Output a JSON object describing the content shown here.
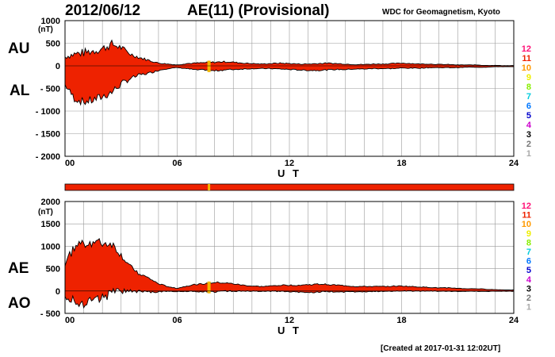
{
  "header": {
    "date": "2012/06/12",
    "index_title": "AE(11) (Provisional)",
    "source": "WDC for Geomagnetism, Kyoto"
  },
  "footer": {
    "created": "[Created at 2017-01-31 12:02UT]"
  },
  "palette": {
    "fill": "#ee2200",
    "outline": "#000000",
    "marker": "#f5b800",
    "grid": "#999999"
  },
  "station_legend": [
    {
      "label": "12",
      "color": "#ff1177"
    },
    {
      "label": "11",
      "color": "#ee2200"
    },
    {
      "label": "10",
      "color": "#ff9900"
    },
    {
      "label": "9",
      "color": "#eeee00"
    },
    {
      "label": "8",
      "color": "#88ee00"
    },
    {
      "label": "7",
      "color": "#00ccdd"
    },
    {
      "label": "6",
      "color": "#0077ff"
    },
    {
      "label": "5",
      "color": "#0000cc"
    },
    {
      "label": "4",
      "color": "#cc00cc"
    },
    {
      "label": "3",
      "color": "#000000"
    },
    {
      "label": "2",
      "color": "#777777"
    },
    {
      "label": "1",
      "color": "#aaaaaa"
    }
  ],
  "chart_data": [
    {
      "type": "area",
      "id": "au-al",
      "series_labels": [
        "AU",
        "AL"
      ],
      "unit": "(nT)",
      "xlabel": "U T",
      "xlim": [
        0,
        24
      ],
      "xticks": [
        "00",
        "06",
        "12",
        "18",
        "24"
      ],
      "ylim": [
        -2000,
        1000
      ],
      "yticks": [
        1000,
        500,
        0,
        -500,
        -1000,
        -1500,
        -2000
      ],
      "ytick_labels": [
        "1000",
        "500",
        "0",
        "- 500",
        "- 1000",
        "- 1500",
        "- 2000"
      ],
      "gap_marker_hour": 7.7,
      "x": [
        0,
        0.5,
        1,
        1.5,
        2,
        2.5,
        3,
        3.5,
        4,
        4.5,
        5,
        5.5,
        6,
        6.5,
        7,
        7.5,
        8,
        8.5,
        9,
        9.5,
        10,
        10.5,
        11,
        11.5,
        12,
        12.5,
        13,
        13.5,
        14,
        14.5,
        15,
        15.5,
        16,
        16.5,
        17,
        17.5,
        18,
        18.5,
        19,
        19.5,
        20,
        20.5,
        21,
        21.5,
        22,
        22.5,
        23,
        23.5,
        24
      ],
      "series": [
        {
          "name": "AU",
          "values": [
            200,
            260,
            290,
            330,
            380,
            480,
            400,
            260,
            180,
            120,
            60,
            40,
            20,
            50,
            60,
            70,
            80,
            90,
            80,
            60,
            50,
            40,
            50,
            60,
            50,
            40,
            40,
            50,
            60,
            50,
            40,
            30,
            30,
            40,
            40,
            50,
            60,
            50,
            40,
            40,
            30,
            30,
            20,
            20,
            20,
            10,
            10,
            5,
            5
          ]
        },
        {
          "name": "AL",
          "values": [
            -420,
            -720,
            -800,
            -760,
            -680,
            -580,
            -400,
            -280,
            -200,
            -160,
            -100,
            -60,
            -40,
            -60,
            -90,
            -90,
            -110,
            -90,
            -80,
            -70,
            -60,
            -60,
            -60,
            -70,
            -80,
            -90,
            -100,
            -100,
            -90,
            -80,
            -80,
            -70,
            -70,
            -60,
            -60,
            -60,
            -50,
            -50,
            -50,
            -40,
            -40,
            -40,
            -40,
            -30,
            -30,
            -30,
            -20,
            -20,
            -20
          ]
        }
      ]
    },
    {
      "type": "area",
      "id": "ae-ao",
      "series_labels": [
        "AE",
        "AO"
      ],
      "unit": "(nT)",
      "xlabel": "U T",
      "xlim": [
        0,
        24
      ],
      "xticks": [
        "00",
        "06",
        "12",
        "18",
        "24"
      ],
      "ylim": [
        -500,
        2000
      ],
      "yticks": [
        2000,
        1500,
        1000,
        500,
        0,
        -500
      ],
      "ytick_labels": [
        "2000",
        "1500",
        "1000",
        "500",
        "0",
        "- 500"
      ],
      "gap_marker_hour": 7.7,
      "x": [
        0,
        0.5,
        1,
        1.5,
        2,
        2.5,
        3,
        3.5,
        4,
        4.5,
        5,
        5.5,
        6,
        6.5,
        7,
        7.5,
        8,
        8.5,
        9,
        9.5,
        10,
        10.5,
        11,
        11.5,
        12,
        12.5,
        13,
        13.5,
        14,
        14.5,
        15,
        15.5,
        16,
        16.5,
        17,
        17.5,
        18,
        18.5,
        19,
        19.5,
        20,
        20.5,
        21,
        21.5,
        22,
        22.5,
        23,
        23.5,
        24
      ],
      "series": [
        {
          "name": "AE",
          "values": [
            620,
            980,
            1090,
            1090,
            1060,
            1060,
            800,
            540,
            380,
            280,
            160,
            100,
            60,
            110,
            150,
            160,
            190,
            180,
            160,
            130,
            110,
            100,
            110,
            130,
            130,
            130,
            140,
            150,
            150,
            130,
            120,
            100,
            100,
            100,
            100,
            110,
            110,
            100,
            90,
            80,
            70,
            70,
            60,
            50,
            50,
            40,
            30,
            25,
            25
          ]
        },
        {
          "name": "AO",
          "values": [
            -110,
            -230,
            -255,
            -215,
            -150,
            -50,
            0,
            -10,
            -10,
            -20,
            -20,
            -10,
            -10,
            -5,
            -15,
            -10,
            -15,
            0,
            0,
            -5,
            -5,
            -10,
            -5,
            -5,
            -15,
            -25,
            -30,
            -25,
            -15,
            -15,
            -20,
            -20,
            -20,
            -10,
            -10,
            -5,
            5,
            0,
            -5,
            0,
            -5,
            -5,
            -10,
            -5,
            -5,
            -10,
            -5,
            -7,
            -7
          ]
        }
      ]
    }
  ]
}
